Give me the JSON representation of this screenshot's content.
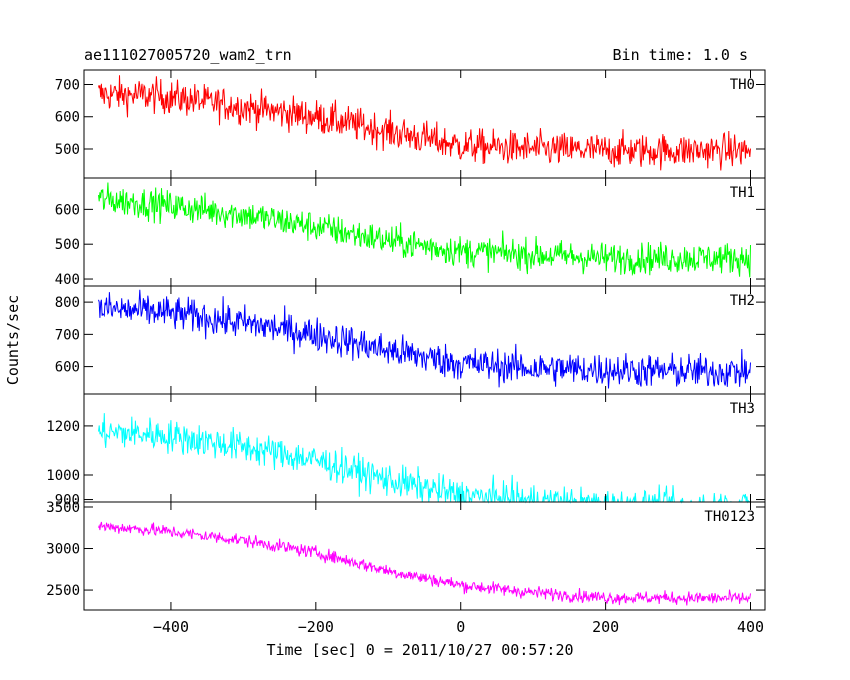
{
  "header": {
    "title": "ae111027005720_wam2_trn",
    "bin_time": "Bin time: 1.0 s"
  },
  "chart_data": {
    "type": "line",
    "title": "ae111027005720_wam2_trn",
    "xlabel": "Time [sec] 0 = 2011/10/27 00:57:20",
    "ylabel": "Counts/sec",
    "xlim": [
      -520,
      420
    ],
    "x_ticks": [
      -400,
      -200,
      0,
      200,
      400
    ],
    "x_tick_labels": [
      "−400",
      "−200",
      "0",
      "200",
      "400"
    ],
    "x_range_data": [
      -500,
      400
    ],
    "bin_time_s": 1.0,
    "grid": false,
    "panels": [
      {
        "name": "TH0",
        "color": "#ff0000",
        "ylim": [
          410,
          745
        ],
        "yticks": [
          500,
          600,
          700
        ],
        "trend_x": [
          -500,
          -420,
          -380,
          -300,
          -200,
          -100,
          0,
          100,
          200,
          300,
          400
        ],
        "trend_y": [
          670,
          665,
          655,
          630,
          600,
          555,
          510,
          500,
          495,
          495,
          495
        ],
        "noise": 38
      },
      {
        "name": "TH1",
        "color": "#00ff00",
        "ylim": [
          380,
          690
        ],
        "yticks": [
          400,
          500,
          600
        ],
        "trend_x": [
          -500,
          -420,
          -380,
          -300,
          -200,
          -100,
          0,
          100,
          200,
          300,
          400
        ],
        "trend_y": [
          630,
          615,
          605,
          585,
          550,
          510,
          480,
          470,
          460,
          460,
          460
        ],
        "noise": 32
      },
      {
        "name": "TH2",
        "color": "#0000ff",
        "ylim": [
          515,
          850
        ],
        "yticks": [
          600,
          700,
          800
        ],
        "trend_x": [
          -500,
          -420,
          -380,
          -300,
          -200,
          -100,
          0,
          100,
          200,
          300,
          400
        ],
        "trend_y": [
          780,
          770,
          760,
          735,
          700,
          650,
          610,
          595,
          590,
          585,
          585
        ],
        "noise": 38
      },
      {
        "name": "TH3",
        "color": "#00ffff",
        "ylim": [
          890,
          1330
        ],
        "yticks": [
          900,
          1000,
          1200
        ],
        "trend_x": [
          -500,
          -420,
          -380,
          -300,
          -200,
          -100,
          0,
          100,
          200,
          300,
          400
        ],
        "trend_y": [
          1175,
          1165,
          1150,
          1115,
          1060,
          980,
          915,
          895,
          875,
          870,
          870
        ],
        "noise": 48
      },
      {
        "name": "TH0123",
        "color": "#ff00ff",
        "ylim": [
          2260,
          3560
        ],
        "yticks": [
          2500,
          3000,
          3500
        ],
        "trend_x": [
          -500,
          -420,
          -380,
          -300,
          -200,
          -100,
          0,
          100,
          200,
          300,
          400
        ],
        "trend_y": [
          3270,
          3220,
          3180,
          3100,
          2950,
          2730,
          2560,
          2470,
          2410,
          2405,
          2400
        ],
        "noise": 55
      }
    ]
  }
}
